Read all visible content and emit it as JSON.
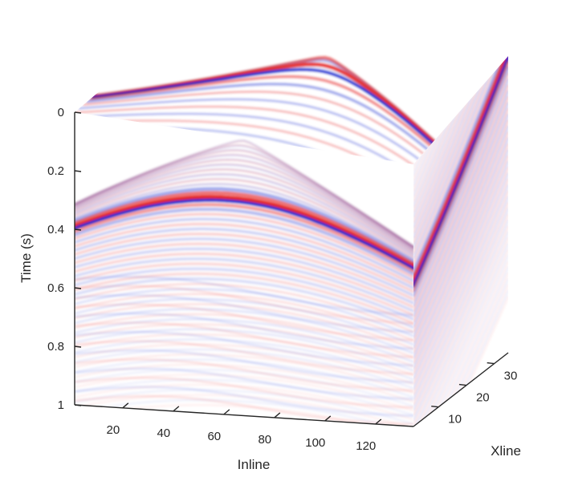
{
  "chart_data": {
    "type": "3d-seismic-cube",
    "xlabel": "Inline",
    "ylabel": "Time (s)",
    "zlabel": "Xline",
    "inline_ticks": [
      20,
      40,
      60,
      80,
      100,
      120
    ],
    "inline_range": [
      1,
      135
    ],
    "time_ticks": [
      "0",
      "0.2",
      "0.4",
      "0.6",
      "0.8",
      "1"
    ],
    "time_values": [
      0,
      0.2,
      0.4,
      0.6,
      0.8,
      1
    ],
    "time_range": [
      0,
      1
    ],
    "xline_ticks": [
      10,
      20,
      30
    ],
    "xline_range": [
      1,
      35
    ],
    "colormap": "blue-white-red",
    "colors": {
      "negative": "#1428d2",
      "positive": "#e61e1e",
      "zero": "#ffffff",
      "axis": "#262626"
    },
    "events": [
      {
        "name": "hyperbola",
        "apex_inline": 68,
        "apex_time": 0.22
      },
      {
        "name": "dipping-reflector-xline-face",
        "time_at_front": 0.46,
        "time_at_back": 0.0
      }
    ]
  }
}
